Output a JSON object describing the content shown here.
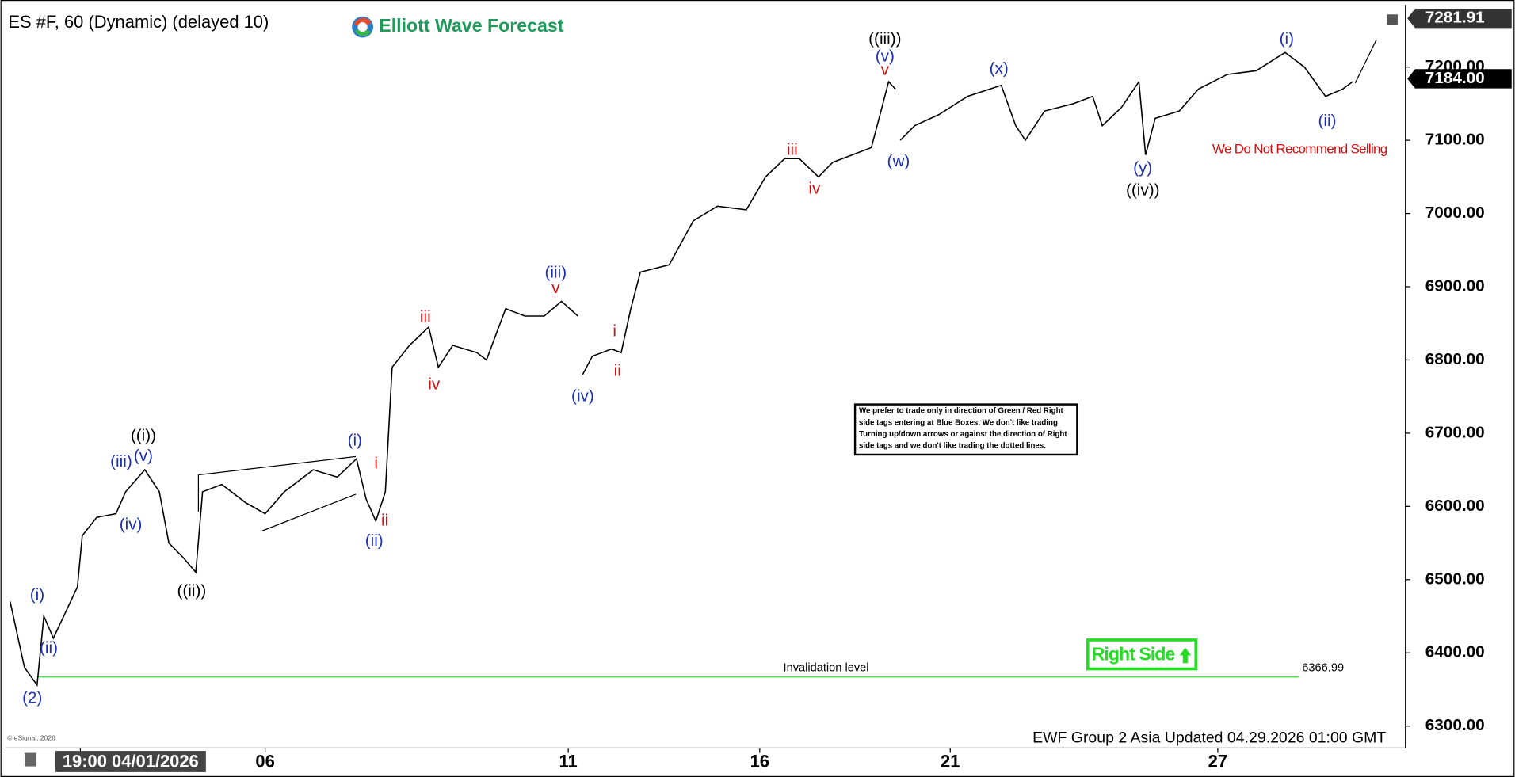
{
  "chart_data": {
    "type": "line",
    "title": "ES #F, 60 (Dynamic) (delayed 10)",
    "brand": "Elliott Wave Forecast",
    "footer": "EWF Group 2 Asia Updated 04.29.2026 01:00 GMT",
    "copyright": "© eSignal, 2026",
    "warning": "We Do Not Recommend Selling",
    "note": [
      "We prefer to trade only in direction of Green / Red Right",
      "side tags entering at Blue Boxes. We don't like trading",
      "Turning up/down arrows or against the direction of Right",
      "side tags and we don't like trading the dotted lines."
    ],
    "right_side": "Right Side",
    "invalidation": {
      "label": "Invalidation level",
      "value": 6366.99,
      "value_label": "6366.99",
      "color": "#33dd33"
    },
    "price_tags": [
      {
        "value": 7281.91,
        "label": "7281.91"
      },
      {
        "value": 7184,
        "label": "7184.00"
      }
    ],
    "x": [
      5,
      20,
      33,
      40,
      50,
      75,
      80,
      95,
      115,
      125,
      145,
      160,
      170,
      185,
      198,
      205,
      225,
      250,
      270,
      290,
      320,
      345,
      365,
      375,
      385,
      395,
      402,
      420,
      440,
      450,
      465,
      490,
      500,
      520,
      540,
      560,
      578,
      595,
      597,
      600,
      610,
      630,
      640,
      650,
      660,
      690,
      715,
      740,
      770,
      790,
      810,
      825,
      845,
      860,
      880,
      900,
      910,
      918,
      925,
      927,
      930,
      945,
      970,
      1000,
      1035,
      1050,
      1060,
      1080,
      1110,
      1130,
      1140,
      1160,
      1178,
      1185,
      1195,
      1220,
      1240,
      1270,
      1300,
      1330,
      1350,
      1372,
      1390,
      1400
    ],
    "series": [
      {
        "name": "ES #F",
        "color": "#000000",
        "values": [
          6470,
          6380,
          6356,
          6450,
          6420,
          6490,
          6560,
          6585,
          6590,
          6620,
          6650,
          6620,
          6550,
          6530,
          6510,
          6620,
          6630,
          6605,
          6590,
          6620,
          6650,
          6640,
          6665,
          6610,
          6580,
          6620,
          6790,
          6820,
          6845,
          6790,
          6820,
          6810,
          6800,
          6870,
          6860,
          6860,
          6880,
          6860,
          null,
          6780,
          6805,
          6815,
          6810,
          6870,
          6920,
          6930,
          6990,
          7010,
          7005,
          7050,
          7075,
          7075,
          7050,
          7070,
          7080,
          7090,
          7140,
          7180,
          7170,
          null,
          7100,
          7120,
          7135,
          7160,
          7175,
          7120,
          7100,
          7140,
          7150,
          7160,
          7120,
          7145,
          7180,
          7080,
          7130,
          7140,
          7170,
          7190,
          7195,
          7220,
          7200,
          7160,
          7170,
          7180
        ]
      }
    ],
    "xlim": [
      0,
      1455
    ],
    "xticks": [
      {
        "value": 78,
        "label": "19:00 04/01/2026"
      },
      {
        "value": 270,
        "label": "06"
      },
      {
        "value": 585,
        "label": "11"
      },
      {
        "value": 784,
        "label": "16"
      },
      {
        "value": 982,
        "label": "21"
      },
      {
        "value": 1260,
        "label": "27"
      }
    ],
    "ylim": [
      6270,
      7285
    ],
    "yticks": [
      {
        "value": 6300,
        "label": "6300.00"
      },
      {
        "value": 6400,
        "label": "6400.00"
      },
      {
        "value": 6500,
        "label": "6500.00"
      },
      {
        "value": 6600,
        "label": "6600.00"
      },
      {
        "value": 6700,
        "label": "6700.00"
      },
      {
        "value": 6800,
        "label": "6800.00"
      },
      {
        "value": 6900,
        "label": "6900.00"
      },
      {
        "value": 7000,
        "label": "7000.00"
      },
      {
        "value": 7100,
        "label": "7100.00"
      },
      {
        "value": 7200,
        "label": "7200.00"
      }
    ],
    "annotations": [
      {
        "text": "(2)",
        "color": "#1a2fb5"
      },
      {
        "text": "(i)",
        "color": "#1a2fb5"
      },
      {
        "text": "(ii)",
        "color": "#1a2fb5"
      },
      {
        "text": "(iii)",
        "color": "#1a2fb5"
      },
      {
        "text": "(iv)",
        "color": "#1a2fb5"
      },
      {
        "text": "(v)",
        "color": "#1a2fb5"
      },
      {
        "text": "((i))",
        "color": "#000000"
      },
      {
        "text": "((ii))",
        "color": "#000000"
      },
      {
        "text": "(i)",
        "color": "#1a2fb5"
      },
      {
        "text": "(ii)",
        "color": "#1a2fb5"
      },
      {
        "text": "i",
        "color": "#d01010"
      },
      {
        "text": "ii",
        "color": "#d01010"
      },
      {
        "text": "iii",
        "color": "#d01010"
      },
      {
        "text": "iv",
        "color": "#d01010"
      },
      {
        "text": "(iii)",
        "color": "#1a2fb5"
      },
      {
        "text": "v",
        "color": "#d01010"
      },
      {
        "text": "(iv)",
        "color": "#1a2fb5"
      },
      {
        "text": "i",
        "color": "#d01010"
      },
      {
        "text": "ii",
        "color": "#d01010"
      },
      {
        "text": "iii",
        "color": "#d01010"
      },
      {
        "text": "iv",
        "color": "#d01010"
      },
      {
        "text": "((iii))",
        "color": "#000000"
      },
      {
        "text": "(v)",
        "color": "#1a2fb5"
      },
      {
        "text": "v",
        "color": "#d01010"
      },
      {
        "text": "(w)",
        "color": "#1a2fb5"
      },
      {
        "text": "(x)",
        "color": "#1a2fb5"
      },
      {
        "text": "(y)",
        "color": "#1a2fb5"
      },
      {
        "text": "((iv))",
        "color": "#000000"
      },
      {
        "text": "(i)",
        "color": "#1a2fb5"
      },
      {
        "text": "(ii)",
        "color": "#1a2fb5"
      }
    ]
  }
}
